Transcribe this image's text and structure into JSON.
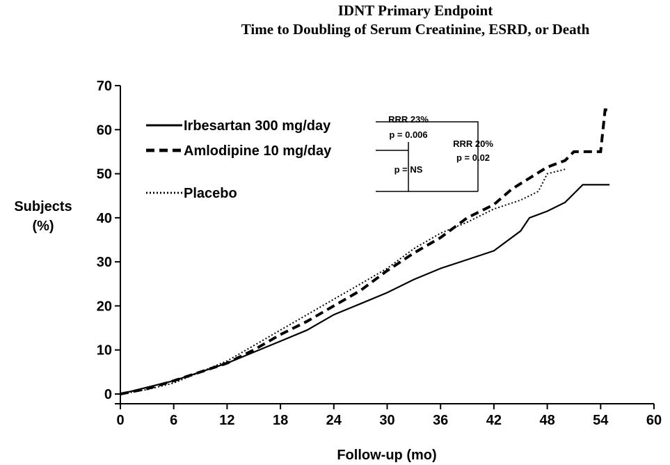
{
  "chart_data": {
    "type": "line",
    "title": "IDNT Primary Endpoint",
    "subtitle": "Time to Doubling of Serum Creatinine, ESRD, or Death",
    "x_label": "Follow-up (mo)",
    "y_label": [
      "Subjects",
      "(%)"
    ],
    "xlim": [
      0,
      60
    ],
    "xticks": [
      0,
      6,
      12,
      18,
      24,
      30,
      36,
      42,
      48,
      54,
      60
    ],
    "ylim": [
      0,
      70
    ],
    "yticks": [
      0,
      10,
      20,
      30,
      40,
      50,
      60,
      70
    ],
    "annotations": [
      "RRR 23%",
      "p = 0.006",
      "p = NS",
      "RRR 20%",
      "p = 0.02"
    ],
    "series": [
      {
        "name": "Irbesartan 300 mg/day",
        "color": "#000000",
        "dash": "solid",
        "x": [
          0,
          3,
          6,
          9,
          12,
          15,
          18,
          21,
          24,
          27,
          30,
          33,
          36,
          39,
          42,
          45,
          46,
          48,
          50,
          51,
          52,
          55
        ],
        "values": [
          0,
          1.5,
          3,
          5,
          7,
          9.5,
          12,
          14.5,
          18,
          20.5,
          23,
          26,
          28.5,
          30.5,
          32.5,
          37,
          40,
          41.5,
          43.5,
          45.5,
          47.5,
          47.5
        ]
      },
      {
        "name": "Amlodipine 10 mg/day",
        "color": "#000000",
        "dash": "dashed",
        "x": [
          0,
          3,
          6,
          9,
          12,
          15,
          18,
          21,
          24,
          27,
          30,
          33,
          36,
          39,
          42,
          44,
          46,
          48,
          50,
          51,
          54,
          54.5,
          55
        ],
        "values": [
          0,
          1.2,
          3,
          5,
          7,
          10,
          13.5,
          16.5,
          20,
          23.5,
          28,
          32,
          35.5,
          40,
          43,
          46.5,
          49,
          51.5,
          53,
          55,
          55,
          64.5,
          64.5
        ]
      },
      {
        "name": "Placebo",
        "color": "#000000",
        "dash": "dotted",
        "x": [
          0,
          3,
          6,
          9,
          12,
          15,
          18,
          21,
          24,
          27,
          30,
          33,
          36,
          39,
          42,
          45,
          47,
          48,
          50
        ],
        "values": [
          0,
          1,
          2.5,
          5,
          7.5,
          11,
          14.5,
          18,
          21.5,
          25,
          28.5,
          33,
          36.5,
          39,
          42,
          44,
          46,
          50,
          51
        ]
      }
    ]
  }
}
